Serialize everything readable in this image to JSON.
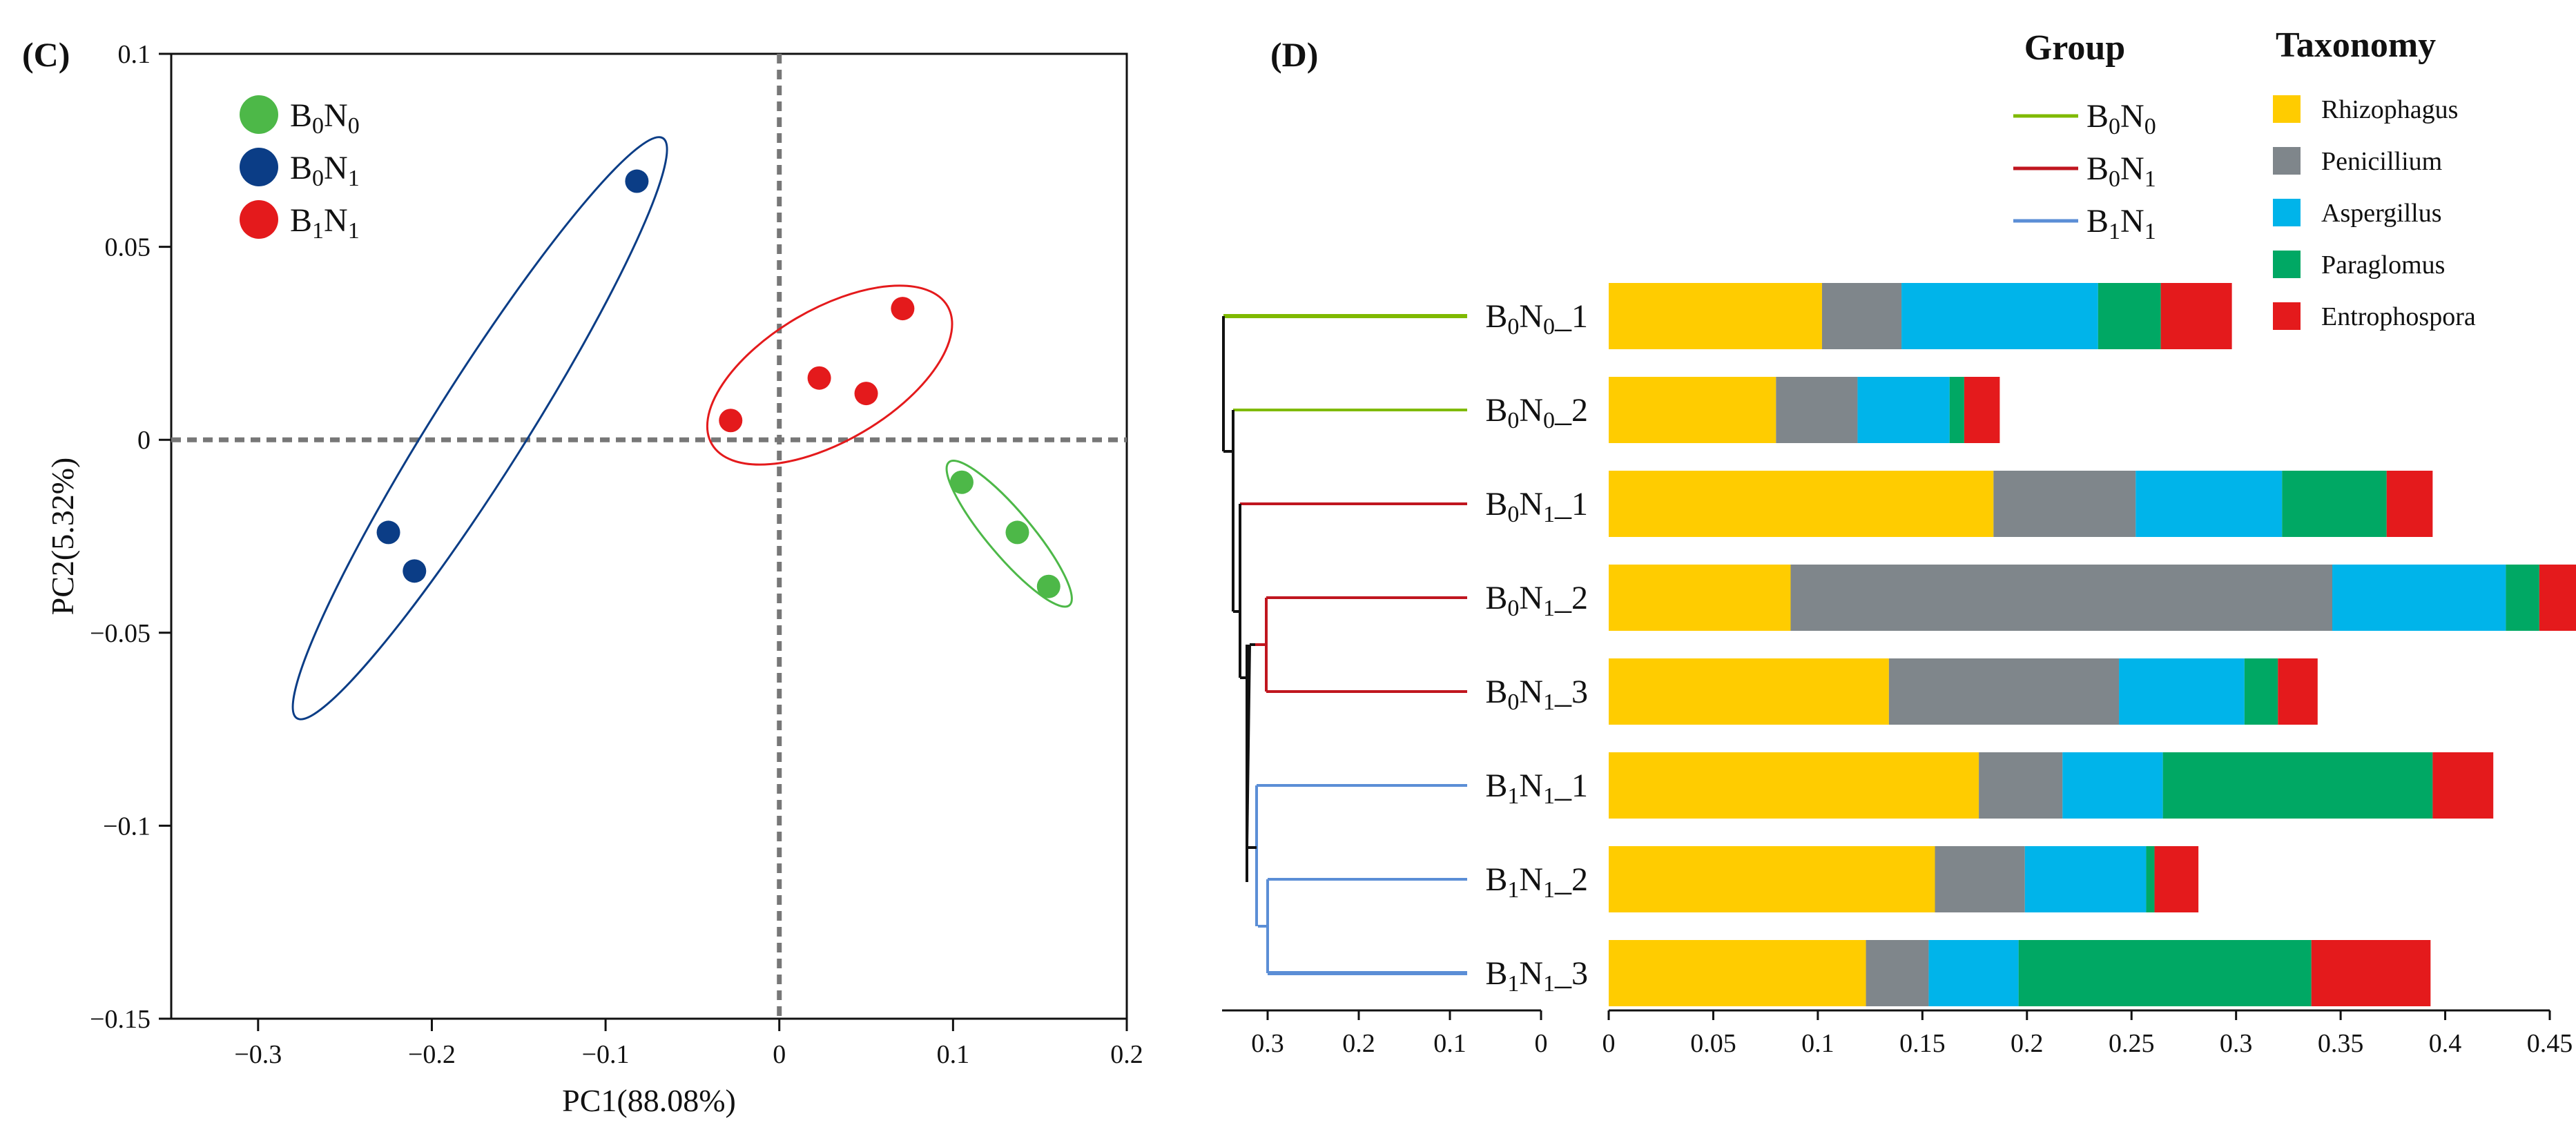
{
  "panels": [
    {
      "label": "(C)",
      "chart_data": {
        "type": "scatter",
        "xlabel": "PC1(88.08%)",
        "ylabel": "PC2(5.32%)",
        "xlim": [
          -0.35,
          0.2
        ],
        "ylim": [
          -0.15,
          0.1
        ],
        "xticks": [
          -0.3,
          -0.2,
          -0.1,
          0,
          0.1,
          0.2
        ],
        "xtick_labels": [
          "−0.3",
          "−0.2",
          "−0.1",
          "0",
          "0.1",
          "0.2"
        ],
        "yticks": [
          0.1,
          0.05,
          0,
          -0.05,
          -0.1,
          -0.15
        ],
        "ytick_labels": [
          "0.1",
          "0.05",
          "0",
          "−0.05",
          "−0.1",
          "−0.15"
        ],
        "reference_lines": {
          "x": 0,
          "y": 0,
          "style": "dotted"
        },
        "legend_position": "top-left",
        "series": [
          {
            "name": [
              "B",
              "0",
              "N",
              "0"
            ],
            "color": "#4db848",
            "points": [
              [
                0.105,
                -0.011
              ],
              [
                0.137,
                -0.024
              ],
              [
                0.155,
                -0.038
              ]
            ]
          },
          {
            "name": [
              "B",
              "0",
              "N",
              "1"
            ],
            "color": "#0b3d86",
            "points": [
              [
                -0.082,
                0.067
              ],
              [
                -0.225,
                -0.024
              ],
              [
                -0.21,
                -0.034
              ]
            ]
          },
          {
            "name": [
              "B",
              "1",
              "N",
              "1"
            ],
            "color": "#e41a1c",
            "points": [
              [
                0.071,
                0.034
              ],
              [
                0.023,
                0.016
              ],
              [
                0.05,
                0.012
              ],
              [
                -0.028,
                0.005
              ]
            ]
          }
        ]
      }
    },
    {
      "label": "(D)",
      "chart_data": {
        "type": "bar",
        "orientation": "horizontal",
        "stacked": true,
        "xlim": [
          0,
          0.45
        ],
        "xticks": [
          0,
          0.05,
          0.1,
          0.15,
          0.2,
          0.25,
          0.3,
          0.35,
          0.4,
          0.45
        ],
        "xtick_labels": [
          "0",
          "0.05",
          "0.1",
          "0.15",
          "0.2",
          "0.25",
          "0.3",
          "0.35",
          "0.4",
          "0.45"
        ],
        "tree_xticks": [
          0.3,
          0.2,
          0.1,
          0
        ],
        "tree_xtick_labels": [
          "0.3",
          "0.2",
          "0.1",
          "0"
        ],
        "group_legend_title": "Group",
        "taxonomy_legend_title": "Taxonomy",
        "groups": [
          {
            "name": [
              "B",
              "0",
              "N",
              "0"
            ],
            "color": "#7fba00"
          },
          {
            "name": [
              "B",
              "0",
              "N",
              "1"
            ],
            "color": "#c0161f"
          },
          {
            "name": [
              "B",
              "1",
              "N",
              "1"
            ],
            "color": "#5b8ed6"
          }
        ],
        "categories": [
          {
            "parts": [
              "B",
              "0",
              "N",
              "0",
              "_1"
            ],
            "group": 0
          },
          {
            "parts": [
              "B",
              "0",
              "N",
              "0",
              "_2"
            ],
            "group": 0
          },
          {
            "parts": [
              "B",
              "0",
              "N",
              "1",
              "_1"
            ],
            "group": 1
          },
          {
            "parts": [
              "B",
              "0",
              "N",
              "1",
              "_2"
            ],
            "group": 1
          },
          {
            "parts": [
              "B",
              "0",
              "N",
              "1",
              "_3"
            ],
            "group": 1
          },
          {
            "parts": [
              "B",
              "1",
              "N",
              "1",
              "_1"
            ],
            "group": 2
          },
          {
            "parts": [
              "B",
              "1",
              "N",
              "1",
              "_2"
            ],
            "group": 2
          },
          {
            "parts": [
              "B",
              "1",
              "N",
              "1",
              "_3"
            ],
            "group": 2
          }
        ],
        "series": [
          {
            "name": "Rhizophagus",
            "color": "#ffcc00",
            "values": [
              0.102,
              0.08,
              0.184,
              0.087,
              0.134,
              0.177,
              0.156,
              0.123
            ]
          },
          {
            "name": "Penicillium",
            "color": "#7f868b",
            "values": [
              0.038,
              0.039,
              0.068,
              0.259,
              0.11,
              0.04,
              0.043,
              0.03
            ]
          },
          {
            "name": "Aspergillus",
            "color": "#00b4ea",
            "values": [
              0.094,
              0.044,
              0.07,
              0.083,
              0.06,
              0.048,
              0.058,
              0.043
            ]
          },
          {
            "name": "Paraglomus",
            "color": "#00a864",
            "values": [
              0.03,
              0.007,
              0.05,
              0.016,
              0.016,
              0.129,
              0.004,
              0.14
            ]
          },
          {
            "name": "Entrophospora",
            "color": "#e41a1c",
            "values": [
              0.034,
              0.017,
              0.022,
              0.025,
              0.019,
              0.029,
              0.021,
              0.057
            ]
          }
        ]
      }
    }
  ]
}
